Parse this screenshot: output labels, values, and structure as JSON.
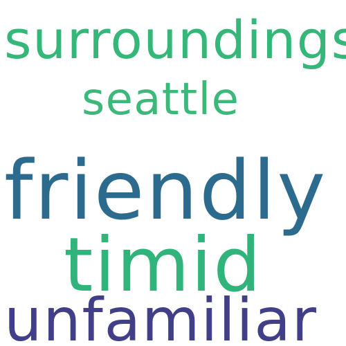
{
  "words": [
    {
      "text": "surroundings",
      "color": "#35b779"
    },
    {
      "text": "seattle",
      "color": "#3cb97a"
    },
    {
      "text": "friendly",
      "color": "#2d6b8e"
    },
    {
      "text": "timid",
      "color": "#30b47b"
    },
    {
      "text": "unfamiliar",
      "color": "#403f88"
    }
  ]
}
